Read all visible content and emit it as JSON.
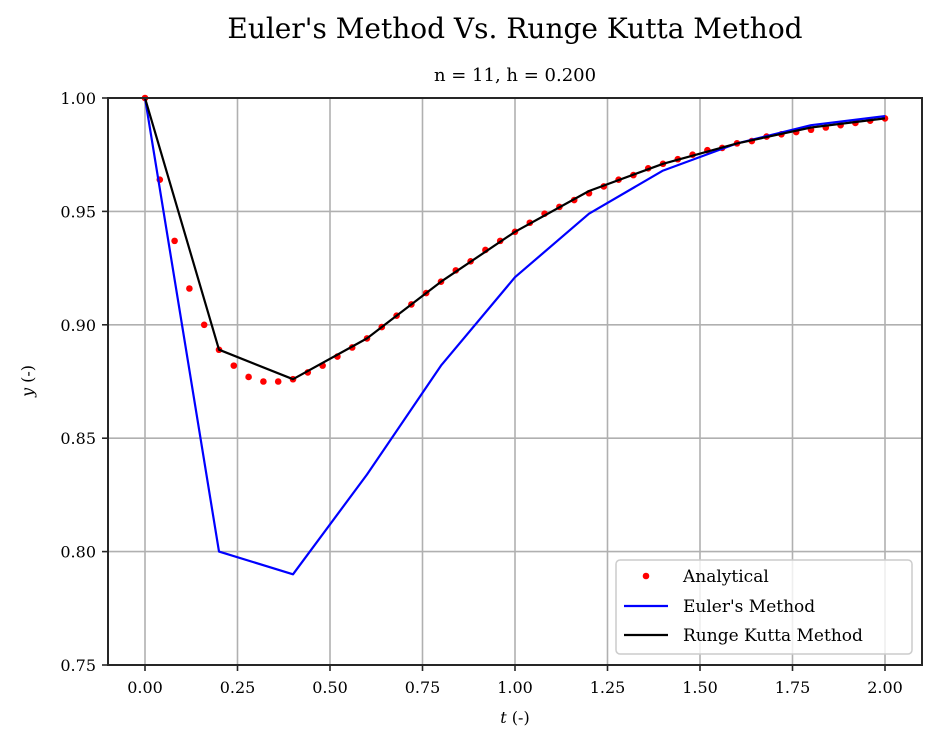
{
  "chart_data": {
    "type": "line",
    "title": "Euler's Method Vs. Runge Kutta Method",
    "subtitle": "n = 11, h = 0.200",
    "xlabel_var": "t",
    "xlabel_unit": " (-)",
    "ylabel_var": "y",
    "ylabel_unit": " (-)",
    "xlim": [
      -0.1,
      2.1
    ],
    "ylim": [
      0.75,
      1.0
    ],
    "xticks": [
      0.0,
      0.25,
      0.5,
      0.75,
      1.0,
      1.25,
      1.5,
      1.75,
      2.0
    ],
    "xtick_labels": [
      "0.00",
      "0.25",
      "0.50",
      "0.75",
      "1.00",
      "1.25",
      "1.50",
      "1.75",
      "2.00"
    ],
    "yticks": [
      0.75,
      0.8,
      0.85,
      0.9,
      0.95,
      1.0
    ],
    "ytick_labels": [
      "0.75",
      "0.80",
      "0.85",
      "0.90",
      "0.95",
      "1.00"
    ],
    "grid": true,
    "legend_position": "lower right",
    "series": [
      {
        "name": "Analytical",
        "style": "markers",
        "color": "#ff0000",
        "x": [
          0.0,
          0.04,
          0.08,
          0.12,
          0.16,
          0.2,
          0.24,
          0.28,
          0.32,
          0.36,
          0.4,
          0.44,
          0.48,
          0.52,
          0.56,
          0.6,
          0.64,
          0.68,
          0.72,
          0.76,
          0.8,
          0.84,
          0.88,
          0.92,
          0.96,
          1.0,
          1.04,
          1.08,
          1.12,
          1.16,
          1.2,
          1.24,
          1.28,
          1.32,
          1.36,
          1.4,
          1.44,
          1.48,
          1.52,
          1.56,
          1.6,
          1.64,
          1.68,
          1.72,
          1.76,
          1.8,
          1.84,
          1.88,
          1.92,
          1.96,
          2.0
        ],
        "y": [
          1.0,
          0.964,
          0.937,
          0.916,
          0.9,
          0.889,
          0.882,
          0.877,
          0.875,
          0.875,
          0.876,
          0.879,
          0.882,
          0.886,
          0.89,
          0.894,
          0.899,
          0.904,
          0.909,
          0.914,
          0.919,
          0.924,
          0.928,
          0.933,
          0.937,
          0.941,
          0.945,
          0.949,
          0.952,
          0.955,
          0.958,
          0.961,
          0.964,
          0.966,
          0.969,
          0.971,
          0.973,
          0.975,
          0.977,
          0.978,
          0.98,
          0.981,
          0.983,
          0.984,
          0.985,
          0.986,
          0.987,
          0.988,
          0.989,
          0.99,
          0.991
        ]
      },
      {
        "name": "Euler's Method",
        "style": "line",
        "color": "#0000ff",
        "x": [
          0.0,
          0.2,
          0.4,
          0.6,
          0.8,
          1.0,
          1.2,
          1.4,
          1.6,
          1.8,
          2.0
        ],
        "y": [
          1.0,
          0.8,
          0.79,
          0.834,
          0.882,
          0.921,
          0.949,
          0.968,
          0.98,
          0.988,
          0.992
        ]
      },
      {
        "name": "Runge Kutta Method",
        "style": "line",
        "color": "#000000",
        "x": [
          0.0,
          0.2,
          0.4,
          0.6,
          0.8,
          1.0,
          1.2,
          1.4,
          1.6,
          1.8,
          2.0
        ],
        "y": [
          1.0,
          0.889,
          0.876,
          0.894,
          0.919,
          0.941,
          0.959,
          0.971,
          0.98,
          0.987,
          0.991
        ]
      }
    ],
    "legend": [
      {
        "label": "Analytical",
        "marker": "dot",
        "color": "#ff0000"
      },
      {
        "label": "Euler's Method",
        "marker": "line",
        "color": "#0000ff"
      },
      {
        "label": "Runge Kutta Method",
        "marker": "line",
        "color": "#000000"
      }
    ]
  }
}
